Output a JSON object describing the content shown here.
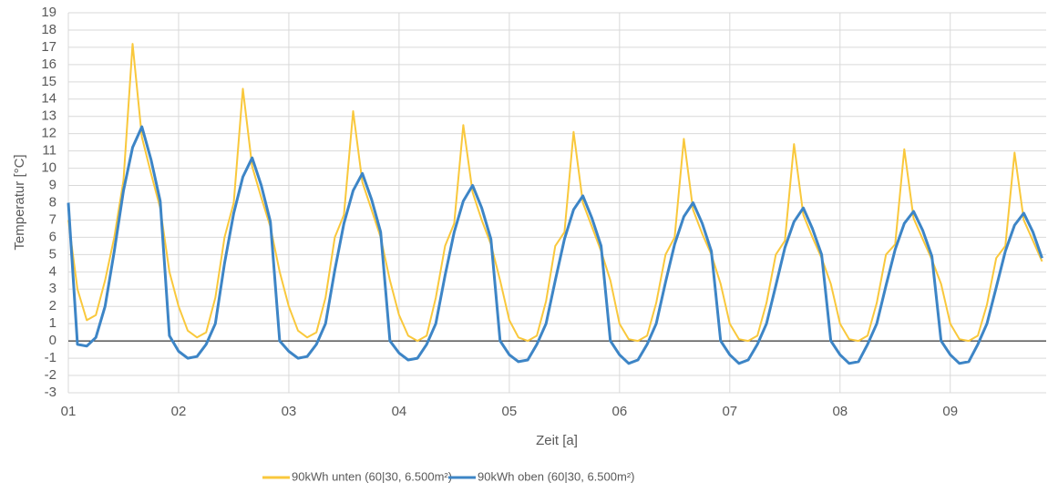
{
  "chart_data": {
    "type": "line",
    "xlabel": "Zeit [a]",
    "ylabel": "Temperatur [°C]",
    "x": [
      1,
      1.083,
      1.167,
      1.25,
      1.333,
      1.417,
      1.5,
      1.583,
      1.667,
      1.75,
      1.833,
      1.917,
      2,
      2.083,
      2.167,
      2.25,
      2.333,
      2.417,
      2.5,
      2.583,
      2.667,
      2.75,
      2.833,
      2.917,
      3,
      3.083,
      3.167,
      3.25,
      3.333,
      3.417,
      3.5,
      3.583,
      3.667,
      3.75,
      3.833,
      3.917,
      4,
      4.083,
      4.167,
      4.25,
      4.333,
      4.417,
      4.5,
      4.583,
      4.667,
      4.75,
      4.833,
      4.917,
      5,
      5.083,
      5.167,
      5.25,
      5.333,
      5.417,
      5.5,
      5.583,
      5.667,
      5.75,
      5.833,
      5.917,
      6,
      6.083,
      6.167,
      6.25,
      6.333,
      6.417,
      6.5,
      6.583,
      6.667,
      6.75,
      6.833,
      6.917,
      7,
      7.083,
      7.167,
      7.25,
      7.333,
      7.417,
      7.5,
      7.583,
      7.667,
      7.75,
      7.833,
      7.917,
      8,
      8.083,
      8.167,
      8.25,
      8.333,
      8.417,
      8.5,
      8.583,
      8.667,
      8.75,
      8.833,
      8.917,
      9,
      9.083,
      9.167,
      9.25,
      9.333,
      9.417,
      9.5,
      9.583,
      9.667,
      9.75,
      9.833
    ],
    "series": [
      {
        "name": "90kWh unten (60|30, 6.500m²)",
        "color": "#f9c83c",
        "values": [
          7,
          3,
          1.2,
          1.5,
          3.5,
          6,
          9.3,
          17.2,
          11.8,
          9.7,
          7.7,
          4,
          2,
          0.6,
          0.2,
          0.5,
          2.5,
          6,
          8,
          14.6,
          10.1,
          8.3,
          6.6,
          4,
          2,
          0.6,
          0.2,
          0.5,
          2.5,
          6,
          7.3,
          13.3,
          9.2,
          7.6,
          6,
          3.5,
          1.5,
          0.3,
          0,
          0.3,
          2.5,
          5.5,
          6.8,
          12.5,
          8.6,
          7,
          5.6,
          3.5,
          1.2,
          0.2,
          0,
          0.3,
          2.3,
          5.5,
          6.3,
          12.1,
          8,
          6.6,
          5.2,
          3.5,
          1,
          0.1,
          0,
          0.3,
          2.2,
          5,
          6,
          11.7,
          7.6,
          6.2,
          5,
          3.3,
          1,
          0.1,
          0,
          0.3,
          2.2,
          5,
          5.8,
          11.4,
          7.3,
          6,
          4.8,
          3.3,
          1,
          0.1,
          0,
          0.3,
          2.2,
          5,
          5.6,
          11.1,
          7.1,
          5.9,
          4.7,
          3.3,
          1,
          0.1,
          0,
          0.3,
          2.1,
          4.8,
          5.5,
          10.9,
          7,
          5.8,
          4.6
        ]
      },
      {
        "name": "90kWh oben (60|30, 6.500m²)",
        "color": "#3d85c6",
        "values": [
          8,
          -0.2,
          -0.3,
          0.2,
          2,
          5.2,
          8.7,
          11.2,
          12.4,
          10.5,
          8.1,
          0.3,
          -0.6,
          -1.0,
          -0.9,
          -0.2,
          1.0,
          4.5,
          7.4,
          9.5,
          10.6,
          9.0,
          6.9,
          0,
          -0.6,
          -1.0,
          -0.9,
          -0.2,
          1.0,
          4.1,
          6.8,
          8.7,
          9.7,
          8.2,
          6.3,
          0,
          -0.7,
          -1.1,
          -1.0,
          -0.2,
          1.0,
          3.8,
          6.3,
          8.1,
          9.0,
          7.7,
          5.9,
          0,
          -0.8,
          -1.2,
          -1.1,
          -0.2,
          1.0,
          3.5,
          5.9,
          7.6,
          8.4,
          7.1,
          5.5,
          0,
          -0.8,
          -1.3,
          -1.1,
          -0.2,
          1.0,
          3.4,
          5.6,
          7.2,
          8.0,
          6.8,
          5.2,
          0,
          -0.8,
          -1.3,
          -1.1,
          -0.2,
          1.0,
          3.2,
          5.4,
          6.9,
          7.7,
          6.5,
          5.0,
          0,
          -0.8,
          -1.3,
          -1.2,
          -0.2,
          1.0,
          3.2,
          5.3,
          6.8,
          7.5,
          6.4,
          4.9,
          0,
          -0.8,
          -1.3,
          -1.2,
          -0.2,
          1.0,
          3.1,
          5.2,
          6.7,
          7.4,
          6.3,
          4.8
        ]
      }
    ],
    "xlim": [
      1,
      9.87
    ],
    "xticks": [
      {
        "value": 1,
        "label": "01"
      },
      {
        "value": 2,
        "label": "02"
      },
      {
        "value": 3,
        "label": "03"
      },
      {
        "value": 4,
        "label": "04"
      },
      {
        "value": 5,
        "label": "05"
      },
      {
        "value": 6,
        "label": "06"
      },
      {
        "value": 7,
        "label": "07"
      },
      {
        "value": 8,
        "label": "08"
      },
      {
        "value": 9,
        "label": "09"
      }
    ],
    "ylim": [
      -3,
      19
    ],
    "yticks": [
      -3,
      -2,
      -1,
      0,
      1,
      2,
      3,
      4,
      5,
      6,
      7,
      8,
      9,
      10,
      11,
      12,
      13,
      14,
      15,
      16,
      17,
      18,
      19
    ],
    "grid": true,
    "legend": "bottom"
  }
}
